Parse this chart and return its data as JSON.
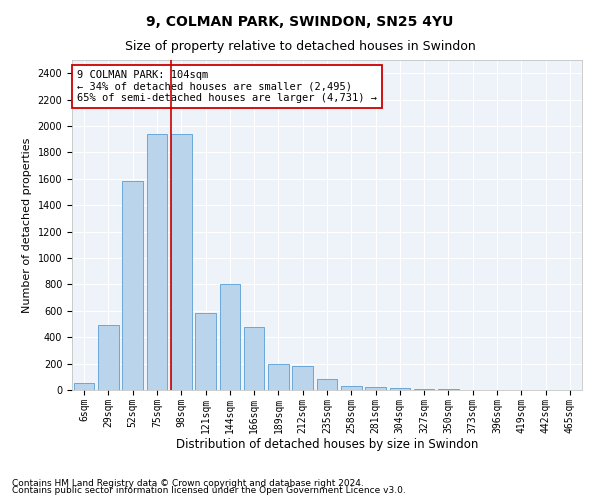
{
  "title": "9, COLMAN PARK, SWINDON, SN25 4YU",
  "subtitle": "Size of property relative to detached houses in Swindon",
  "xlabel": "Distribution of detached houses by size in Swindon",
  "ylabel": "Number of detached properties",
  "categories": [
    "6sqm",
    "29sqm",
    "52sqm",
    "75sqm",
    "98sqm",
    "121sqm",
    "144sqm",
    "166sqm",
    "189sqm",
    "212sqm",
    "235sqm",
    "258sqm",
    "281sqm",
    "304sqm",
    "327sqm",
    "350sqm",
    "373sqm",
    "396sqm",
    "419sqm",
    "442sqm",
    "465sqm"
  ],
  "values": [
    50,
    490,
    1580,
    1940,
    1940,
    585,
    800,
    475,
    200,
    180,
    80,
    28,
    22,
    15,
    5,
    5,
    3,
    3,
    3,
    3,
    3
  ],
  "bar_color": "#bad4eb",
  "bar_edge_color": "#5a9fd4",
  "vline_x_index": 4,
  "vline_color": "#cc0000",
  "annotation_text": "9 COLMAN PARK: 104sqm\n← 34% of detached houses are smaller (2,495)\n65% of semi-detached houses are larger (4,731) →",
  "annotation_box_color": "white",
  "annotation_box_edge_color": "#cc0000",
  "ylim": [
    0,
    2500
  ],
  "yticks": [
    0,
    200,
    400,
    600,
    800,
    1000,
    1200,
    1400,
    1600,
    1800,
    2000,
    2200,
    2400
  ],
  "footnote1": "Contains HM Land Registry data © Crown copyright and database right 2024.",
  "footnote2": "Contains public sector information licensed under the Open Government Licence v3.0.",
  "background_color": "#eef2f9",
  "grid_color": "white",
  "title_fontsize": 10,
  "subtitle_fontsize": 9,
  "xlabel_fontsize": 8.5,
  "ylabel_fontsize": 8,
  "tick_fontsize": 7,
  "annotation_fontsize": 7.5,
  "footnote_fontsize": 6.5
}
